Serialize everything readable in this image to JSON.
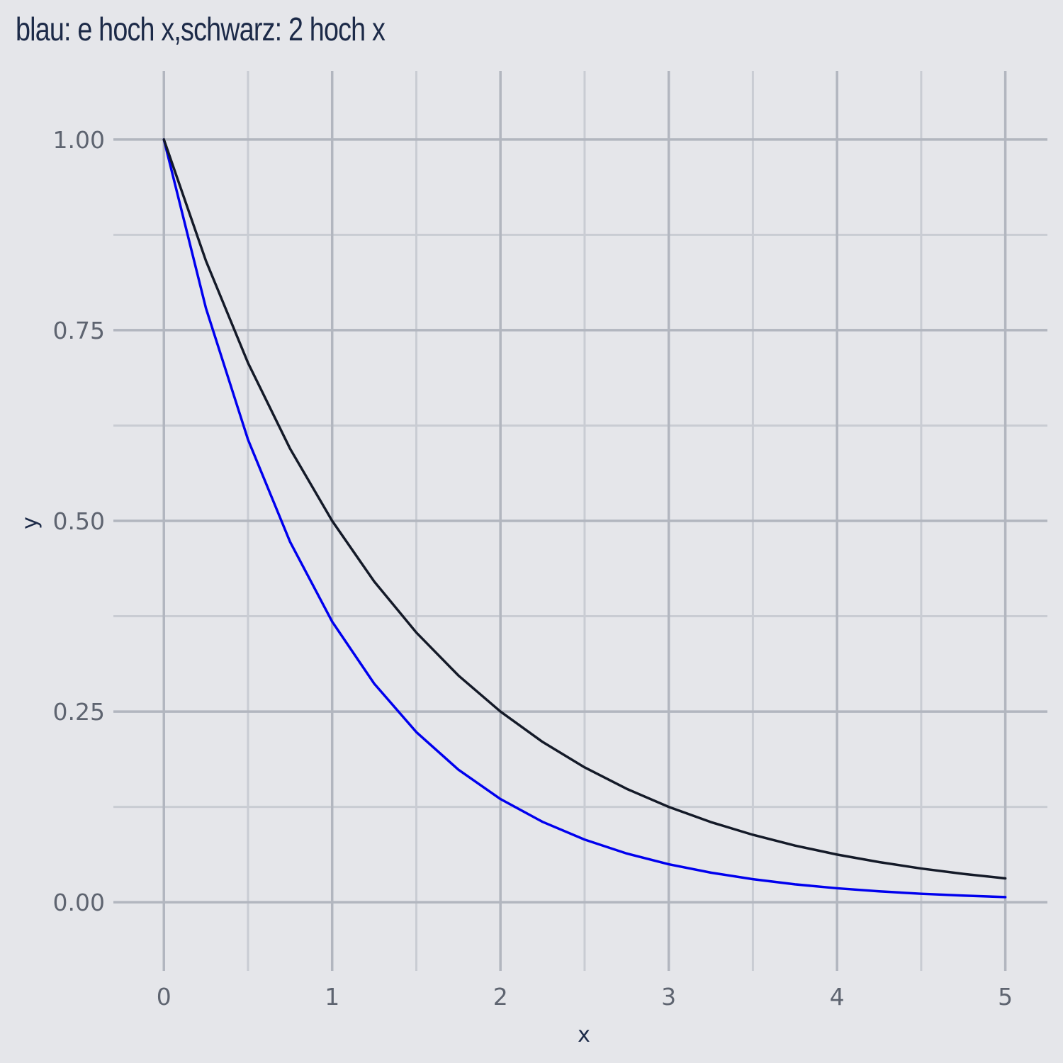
{
  "chart_data": {
    "type": "line",
    "title": "blau: e hoch x,schwarz: 2 hoch x",
    "xlabel": "x",
    "ylabel": "y",
    "xlim": [
      -0.3,
      5.25
    ],
    "ylim": [
      -0.09,
      1.09
    ],
    "x_ticks": [
      0,
      1,
      2,
      3,
      4,
      5
    ],
    "x_tick_labels": [
      "0",
      "1",
      "2",
      "3",
      "4",
      "5"
    ],
    "y_ticks": [
      0,
      0.25,
      0.5,
      0.75,
      1.0
    ],
    "y_tick_labels": [
      "0.00",
      "0.25",
      "0.50",
      "0.75",
      "1.00"
    ],
    "x_minor_ticks": [
      0.5,
      1.5,
      2.5,
      3.5,
      4.5
    ],
    "y_minor_ticks": [
      0.125,
      0.375,
      0.625,
      0.875
    ],
    "grid": true,
    "x": [
      0,
      0.25,
      0.5,
      0.75,
      1.0,
      1.25,
      1.5,
      1.75,
      2.0,
      2.25,
      2.5,
      2.75,
      3.0,
      3.25,
      3.5,
      3.75,
      4.0,
      4.25,
      4.5,
      4.75,
      5.0
    ],
    "series": [
      {
        "color": "#0000ee",
        "values": [
          1.0,
          0.7788,
          0.6065,
          0.4724,
          0.3679,
          0.2865,
          0.2231,
          0.1738,
          0.1353,
          0.1054,
          0.0821,
          0.0639,
          0.0498,
          0.0388,
          0.0302,
          0.0235,
          0.0183,
          0.0143,
          0.0111,
          0.0087,
          0.0067
        ]
      },
      {
        "color": "#141a28",
        "values": [
          1.0,
          0.8409,
          0.7071,
          0.5946,
          0.5,
          0.4204,
          0.3536,
          0.2973,
          0.25,
          0.2102,
          0.1768,
          0.1487,
          0.125,
          0.1051,
          0.0884,
          0.0743,
          0.0625,
          0.0526,
          0.0442,
          0.0372,
          0.0313
        ]
      }
    ]
  }
}
